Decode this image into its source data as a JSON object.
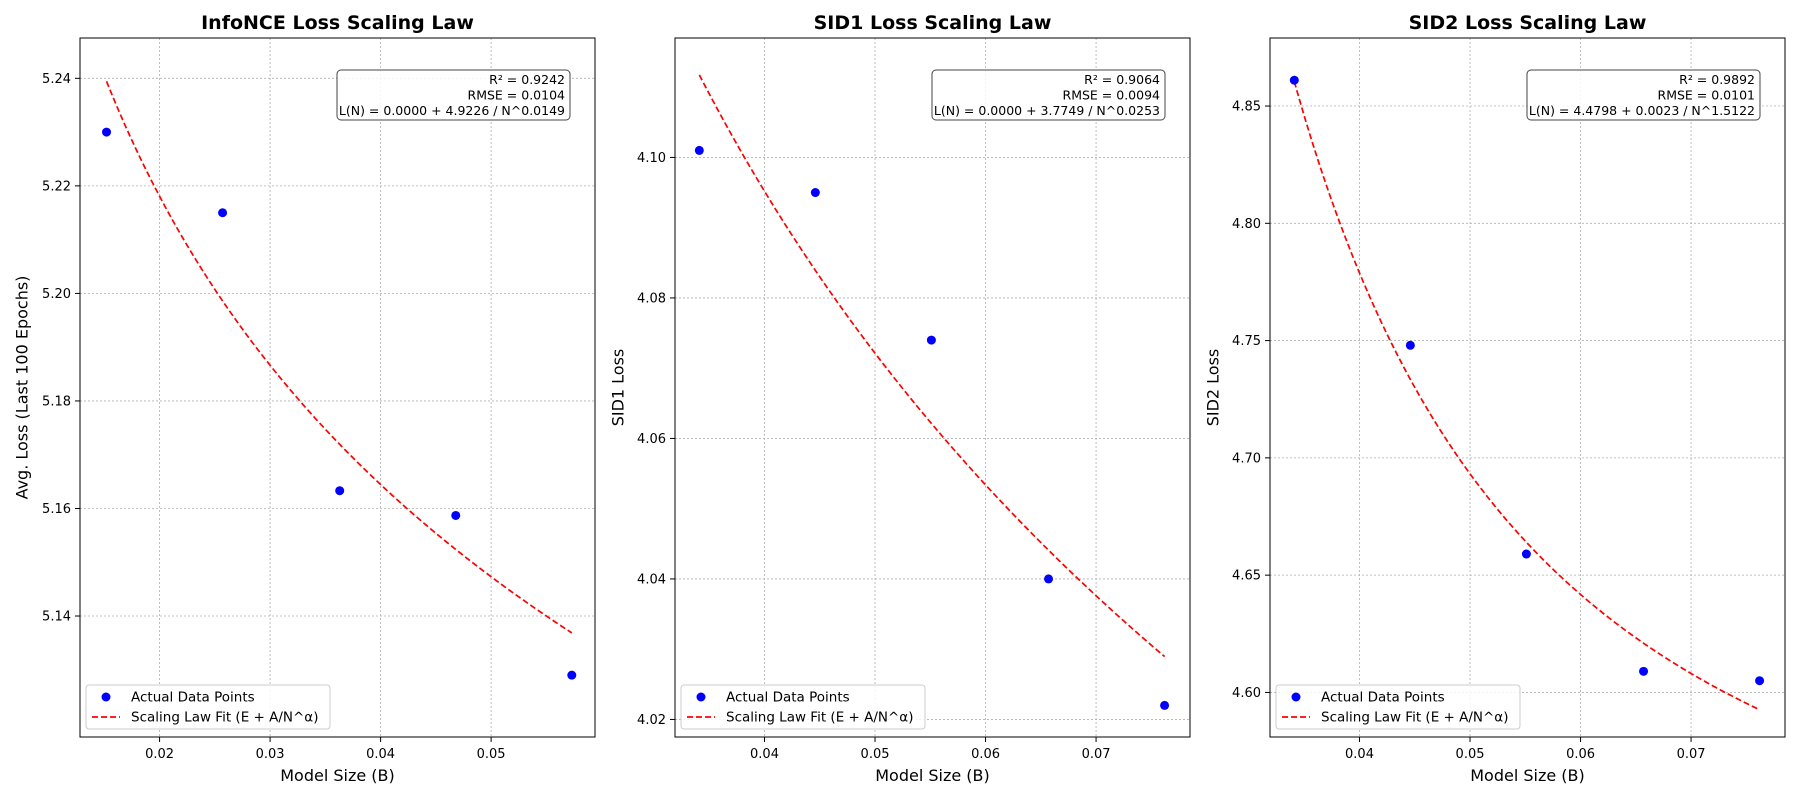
{
  "colors": {
    "points": "#0000ff",
    "fit": "#ff0000"
  },
  "legend": {
    "points_label": "Actual Data Points",
    "fit_label": "Scaling Law Fit (E + A/N^α)",
    "loc": "lower-left"
  },
  "chart_data": [
    {
      "type": "scatter",
      "title": "InfoNCE Loss Scaling Law",
      "xlabel": "Model Size (B)",
      "ylabel": "Avg. Loss (Last 100 Epochs)",
      "xlim": [
        0.0128,
        0.0594
      ],
      "ylim": [
        5.1175,
        5.2475
      ],
      "xticks": [
        0.02,
        0.03,
        0.04,
        0.05
      ],
      "xtick_labels": [
        "0.02",
        "0.03",
        "0.04",
        "0.05"
      ],
      "yticks": [
        5.14,
        5.16,
        5.18,
        5.2,
        5.22,
        5.24
      ],
      "ytick_labels": [
        "5.14",
        "5.16",
        "5.18",
        "5.20",
        "5.22",
        "5.24"
      ],
      "points": {
        "x": [
          0.0152,
          0.0257,
          0.0363,
          0.0468,
          0.0573
        ],
        "y": [
          5.23,
          5.215,
          5.1633,
          5.1587,
          5.129
        ]
      },
      "fit": {
        "E": 0.0,
        "A": 4.9226,
        "alpha": 0.0149,
        "x_range": [
          0.0152,
          0.0573
        ]
      },
      "stats": [
        "R² = 0.9242",
        "RMSE = 0.0104",
        "L(N) = 0.0000 + 4.9226 / N^0.0149"
      ]
    },
    {
      "type": "scatter",
      "title": "SID1 Loss Scaling Law",
      "xlabel": "Model Size (B)",
      "ylabel": "SID1 Loss",
      "xlim": [
        0.0319,
        0.0785
      ],
      "ylim": [
        4.0175,
        4.117
      ],
      "xticks": [
        0.04,
        0.05,
        0.06,
        0.07
      ],
      "xtick_labels": [
        "0.04",
        "0.05",
        "0.06",
        "0.07"
      ],
      "yticks": [
        4.02,
        4.04,
        4.06,
        4.08,
        4.1
      ],
      "ytick_labels": [
        "4.02",
        "4.04",
        "4.06",
        "4.08",
        "4.10"
      ],
      "points": {
        "x": [
          0.0341,
          0.0446,
          0.0551,
          0.0657,
          0.0762
        ],
        "y": [
          4.101,
          4.095,
          4.074,
          4.04,
          4.022
        ]
      },
      "fit": {
        "E": 0.0,
        "A": 3.7749,
        "alpha": 0.0253,
        "x_range": [
          0.0341,
          0.0762
        ]
      },
      "stats": [
        "R² = 0.9064",
        "RMSE = 0.0094",
        "L(N) = 0.0000 + 3.7749 / N^0.0253"
      ]
    },
    {
      "type": "scatter",
      "title": "SID2 Loss Scaling Law",
      "xlabel": "Model Size (B)",
      "ylabel": "SID2 Loss",
      "xlim": [
        0.0319,
        0.0785
      ],
      "ylim": [
        4.581,
        4.879
      ],
      "xticks": [
        0.04,
        0.05,
        0.06,
        0.07
      ],
      "xtick_labels": [
        "0.04",
        "0.05",
        "0.06",
        "0.07"
      ],
      "yticks": [
        4.6,
        4.65,
        4.7,
        4.75,
        4.8,
        4.85
      ],
      "ytick_labels": [
        "4.60",
        "4.65",
        "4.70",
        "4.75",
        "4.80",
        "4.85"
      ],
      "points": {
        "x": [
          0.0341,
          0.0446,
          0.0551,
          0.0657,
          0.0762
        ],
        "y": [
          4.861,
          4.748,
          4.659,
          4.609,
          4.605
        ]
      },
      "fit": {
        "E": 4.4798,
        "A": 0.0023,
        "alpha": 1.5122,
        "x_range": [
          0.0341,
          0.0762
        ]
      },
      "stats": [
        "R² = 0.9892",
        "RMSE = 0.0101",
        "L(N) = 4.4798 + 0.0023 / N^1.5122"
      ]
    }
  ]
}
